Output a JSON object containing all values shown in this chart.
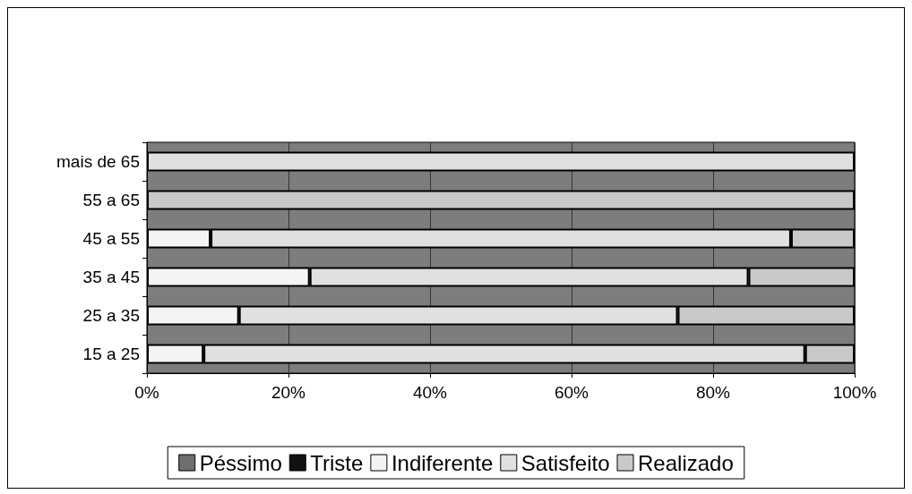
{
  "chart_data": {
    "type": "bar",
    "orientation": "horizontal",
    "stacked": true,
    "categories": [
      "mais de 65",
      "55 a 65",
      "45 a 55",
      "35 a 45",
      "25 a 35",
      "15 a 25"
    ],
    "series": [
      {
        "name": "Péssimo",
        "color": "#6e6e6e",
        "values": [
          0,
          0,
          0,
          0,
          0,
          0
        ]
      },
      {
        "name": "Triste",
        "color": "#111111",
        "values": [
          0,
          0,
          0,
          0,
          0,
          0
        ]
      },
      {
        "name": "Indiferente",
        "color": "#f4f4f4",
        "values": [
          0,
          0,
          9,
          23,
          13,
          8
        ]
      },
      {
        "name": "Satisfeito",
        "color": "#e0e0e0",
        "values": [
          100,
          0,
          82,
          62,
          62,
          85
        ]
      },
      {
        "name": "Realizado",
        "color": "#c9c9c9",
        "values": [
          0,
          100,
          9,
          15,
          25,
          7
        ]
      }
    ],
    "xlim": [
      0,
      100
    ],
    "xticks": [
      {
        "value": 0,
        "label": "0%"
      },
      {
        "value": 20,
        "label": "20%"
      },
      {
        "value": 40,
        "label": "40%"
      },
      {
        "value": 60,
        "label": "60%"
      },
      {
        "value": 80,
        "label": "80%"
      },
      {
        "value": 100,
        "label": "100%"
      }
    ],
    "grid": "x",
    "legend": "bottom"
  }
}
